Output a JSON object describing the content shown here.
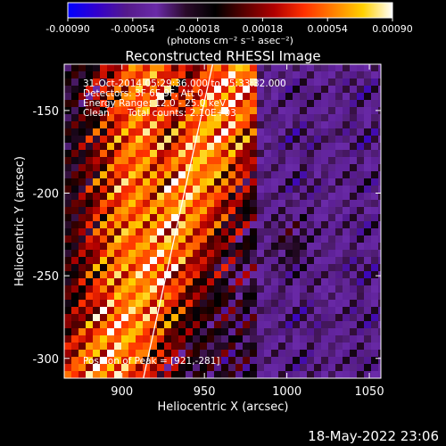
{
  "chart_data": {
    "type": "heatmap",
    "title": "Reconstructed RHESSI Image",
    "xlabel": "Heliocentric X (arcsec)",
    "ylabel": "Heliocentric Y (arcsec)",
    "xlim": [
      865,
      1057
    ],
    "ylim": [
      -312,
      -122
    ],
    "x_ticks": [
      900,
      950,
      1000,
      1050
    ],
    "y_ticks": [
      -150,
      -200,
      -250,
      -300
    ],
    "colorbar": {
      "range": [
        -0.0009,
        0.0009
      ],
      "tick_labels": [
        "-0.00090",
        "-0.00054",
        "-0.00018",
        "0.00018",
        "0.00054",
        "0.00090"
      ],
      "unit_label": "(photons cm⁻² s⁻¹ asec⁻²)",
      "colors": [
        "#0000ff",
        "#3300cc",
        "#551a8b",
        "#6a2aa8",
        "#2a0a2a",
        "#000000",
        "#5a0000",
        "#b00000",
        "#ff3000",
        "#ff8000",
        "#ffd000",
        "#ffffff"
      ]
    },
    "annotations": [
      "31-Oct-2014 05:29:36.000 to 05:33:32.000",
      "Detectors: 3F 6F 9F, Att 0",
      "Energy Range: 12.0 - 25.0 keV",
      "Clean      Total counts: 2.10E+03",
      "Position of Peak = [921,-281]"
    ],
    "limb_line": {
      "x": [
        913,
        955
      ],
      "y": [
        -312,
        -122
      ]
    },
    "peak": {
      "x": 921,
      "y": -281
    }
  },
  "footer": {
    "timestamp": "18-May-2022 23:06"
  }
}
